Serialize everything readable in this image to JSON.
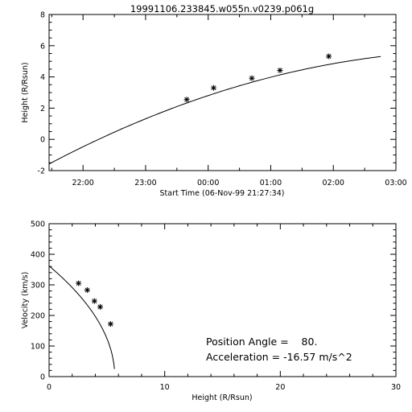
{
  "chart_data": [
    {
      "type": "scatter",
      "title": "19991106.233845.w055n.v0239.p061g",
      "xlabel": "Start Time (06-Nov-99 21:27:34)",
      "ylabel": "Height (R/Rsun)",
      "x_tick_labels": [
        "22:00",
        "23:00",
        "00:00",
        "01:00",
        "02:00",
        "03:00"
      ],
      "x_tick_hours": [
        0.5424,
        1.5424,
        2.5424,
        3.5424,
        4.5424,
        5.5424
      ],
      "xlim_hours": [
        0,
        5.5424
      ],
      "ylim": [
        -2,
        8
      ],
      "y_ticks": [
        -2,
        0,
        2,
        4,
        6,
        8
      ],
      "points_hours": [
        {
          "x": 2.2,
          "y": 2.55
        },
        {
          "x": 2.63,
          "y": 3.3
        },
        {
          "x": 3.24,
          "y": 3.92
        },
        {
          "x": 3.69,
          "y": 4.42
        },
        {
          "x": 4.47,
          "y": 5.32
        }
      ],
      "fit": {
        "kind": "quadratic",
        "h0": 3.2,
        "v_kms": 239,
        "a_ms2": -16.57,
        "x_range_hours": [
          0,
          5.3
        ]
      }
    },
    {
      "type": "scatter",
      "xlabel": "Height (R/Rsun)",
      "ylabel": "Velocity (km/s)",
      "xlim": [
        0,
        30
      ],
      "ylim": [
        0,
        500
      ],
      "x_ticks": [
        0,
        10,
        20,
        30
      ],
      "y_ticks": [
        0,
        100,
        200,
        300,
        400,
        500
      ],
      "points": [
        {
          "x": 2.55,
          "y": 305
        },
        {
          "x": 3.3,
          "y": 283
        },
        {
          "x": 3.92,
          "y": 247
        },
        {
          "x": 4.42,
          "y": 228
        },
        {
          "x": 5.32,
          "y": 172
        }
      ],
      "fit_range": [
        0,
        6.05
      ],
      "annotations": {
        "position_angle": "Position Angle =    80.",
        "acceleration": "Acceleration = -16.57 m/s^2"
      }
    }
  ]
}
